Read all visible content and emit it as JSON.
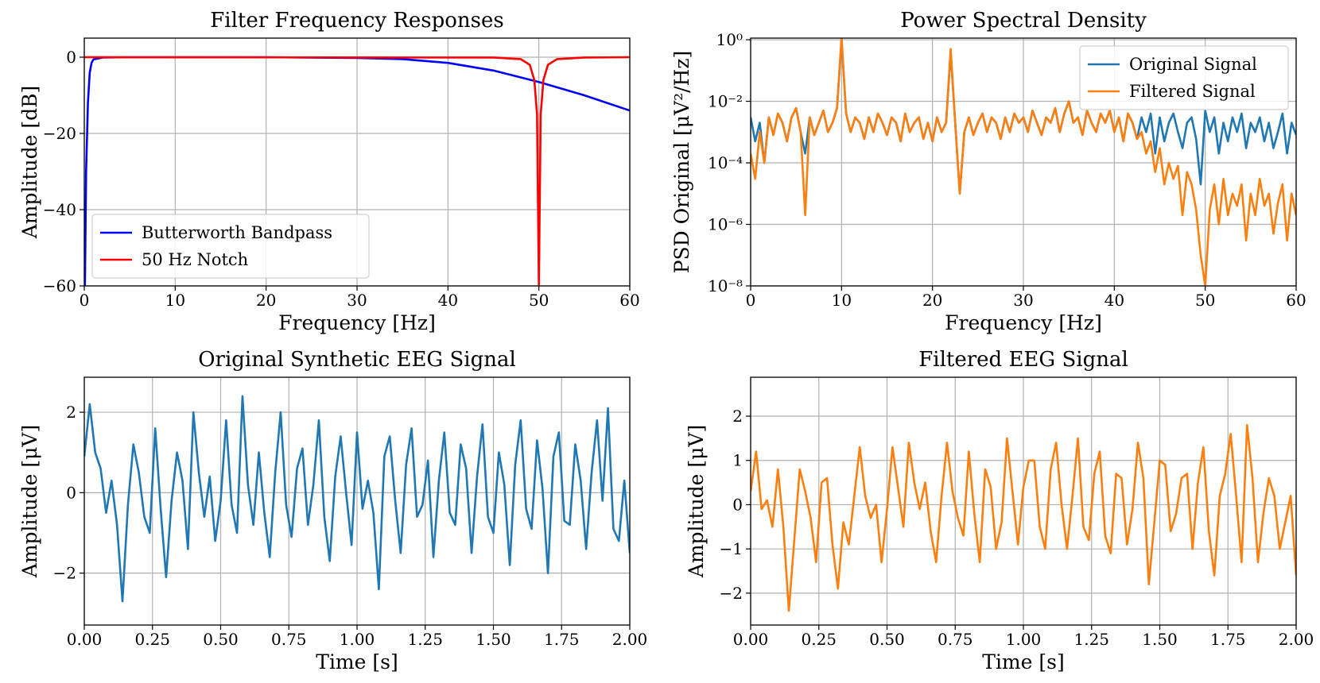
{
  "chart_data": [
    {
      "type": "line",
      "title": "Filter Frequency Responses",
      "xlabel": "Frequency [Hz]",
      "ylabel": "Amplitude [dB]",
      "xlim": [
        0,
        60
      ],
      "ylim": [
        -60,
        5
      ],
      "xticks": [
        0,
        10,
        20,
        30,
        40,
        50,
        60
      ],
      "yticks": [
        {
          "value": -60,
          "label": "−60"
        },
        {
          "value": -40,
          "label": "−40"
        },
        {
          "value": -20,
          "label": "−20"
        },
        0
      ],
      "grid": true,
      "legend": "lower left",
      "log_y": false,
      "series": [
        {
          "name": "Butterworth Bandpass",
          "color": "#0000ff",
          "x": [
            0.05,
            0.2,
            0.4,
            0.6,
            0.8,
            1,
            2,
            5,
            10,
            20,
            30,
            35,
            40,
            45,
            50,
            55,
            60
          ],
          "values": [
            -65,
            -30,
            -12,
            -4,
            -1.5,
            -0.6,
            -0.1,
            0,
            0,
            0,
            -0.2,
            -0.5,
            -1.5,
            -3.5,
            -6.5,
            -10,
            -14
          ]
        },
        {
          "name": "50 Hz Notch",
          "color": "#ff0000",
          "x": [
            0,
            45,
            48,
            49,
            49.5,
            49.8,
            50,
            50.2,
            50.5,
            51,
            52,
            55,
            60
          ],
          "values": [
            0,
            -0.1,
            -0.5,
            -2,
            -6,
            -15,
            -60,
            -15,
            -6,
            -2,
            -0.5,
            -0.1,
            0
          ]
        }
      ]
    },
    {
      "type": "line",
      "title": "Power Spectral Density",
      "xlabel": "Frequency [Hz]",
      "ylabel": "PSD Original [μV²/Hz]",
      "xlim": [
        0,
        60
      ],
      "ylim": [
        1e-08,
        1.13
      ],
      "xticks": [
        0,
        10,
        20,
        30,
        40,
        50,
        60
      ],
      "yticks": [
        {
          "value": 1e-08,
          "label": "10⁻⁸"
        },
        {
          "value": 1e-06,
          "label": "10⁻⁶"
        },
        {
          "value": 0.0001,
          "label": "10⁻⁴"
        },
        {
          "value": 0.01,
          "label": "10⁻²"
        },
        {
          "value": 1,
          "label": "10⁰"
        }
      ],
      "grid": true,
      "legend": "upper right",
      "log_y": true,
      "x": [
        0,
        0.5,
        1,
        1.5,
        2,
        2.5,
        3,
        3.5,
        4,
        4.5,
        5,
        5.5,
        6,
        6.5,
        7,
        7.5,
        8,
        8.5,
        9,
        9.5,
        10,
        10.5,
        11,
        11.5,
        12,
        12.5,
        13,
        13.5,
        14,
        14.5,
        15,
        15.5,
        16,
        16.5,
        17,
        17.5,
        18,
        18.5,
        19,
        19.5,
        20,
        20.5,
        21,
        21.5,
        22,
        22.5,
        23,
        23.5,
        24,
        24.5,
        25,
        25.5,
        26,
        26.5,
        27,
        27.5,
        28,
        28.5,
        29,
        29.5,
        30,
        30.5,
        31,
        31.5,
        32,
        32.5,
        33,
        33.5,
        34,
        34.5,
        35,
        35.5,
        36,
        36.5,
        37,
        37.5,
        38,
        38.5,
        39,
        39.5,
        40,
        40.5,
        41,
        41.5,
        42,
        42.5,
        43,
        43.5,
        44,
        44.5,
        45,
        45.5,
        46,
        46.5,
        47,
        47.5,
        48,
        48.5,
        49,
        49.5,
        50,
        50.5,
        51,
        51.5,
        52,
        52.5,
        53,
        53.5,
        54,
        54.5,
        55,
        55.5,
        56,
        56.5,
        57,
        57.5,
        58,
        58.5,
        59,
        59.5,
        60
      ],
      "series": [
        {
          "name": "Original Signal",
          "color": "#1f77b4",
          "values": [
            0.003,
            0.0005,
            0.002,
            0.0001,
            0.003,
            0.0008,
            0.004,
            0.002,
            0.0005,
            0.003,
            0.006,
            0.001,
            0.0002,
            0.003,
            0.0008,
            0.002,
            0.005,
            0.001,
            0.002,
            0.006,
            1.0,
            0.004,
            0.001,
            0.003,
            0.002,
            0.0006,
            0.003,
            0.001,
            0.004,
            0.002,
            0.0008,
            0.003,
            0.002,
            0.0005,
            0.004,
            0.001,
            0.002,
            0.003,
            0.0006,
            0.002,
            0.0005,
            0.003,
            0.001,
            0.002,
            0.4,
            0.002,
            1e-05,
            0.001,
            0.003,
            0.0008,
            0.002,
            0.004,
            0.001,
            0.003,
            0.002,
            0.0006,
            0.003,
            0.001,
            0.004,
            0.002,
            0.003,
            0.001,
            0.005,
            0.002,
            0.0008,
            0.003,
            0.002,
            0.006,
            0.001,
            0.004,
            0.01,
            0.002,
            0.003,
            0.0008,
            0.005,
            0.002,
            0.001,
            0.004,
            0.002,
            0.005,
            0.001,
            0.003,
            0.0005,
            0.004,
            0.002,
            0.0006,
            0.003,
            0.001,
            0.004,
            0.0002,
            0.003,
            0.0005,
            0.002,
            0.004,
            0.001,
            0.0003,
            0.002,
            0.003,
            0.0006,
            2e-05,
            0.005,
            0.001,
            0.003,
            0.0002,
            0.002,
            0.0005,
            0.003,
            0.001,
            0.004,
            0.0003,
            0.002,
            0.001,
            0.003,
            0.0005,
            0.002,
            0.0003,
            0.001,
            0.004,
            0.0002,
            0.002,
            0.0008
          ]
        },
        {
          "name": "Filtered Signal",
          "color": "#ff7f0e",
          "values": [
            0.0002,
            3e-05,
            0.001,
            0.0001,
            0.003,
            0.0008,
            0.004,
            0.002,
            0.0005,
            0.003,
            0.006,
            0.001,
            2e-06,
            0.003,
            0.0008,
            0.002,
            0.005,
            0.001,
            0.002,
            0.006,
            1.2,
            0.004,
            0.001,
            0.003,
            0.002,
            0.0006,
            0.003,
            0.001,
            0.004,
            0.002,
            0.0008,
            0.003,
            0.002,
            0.0005,
            0.004,
            0.001,
            0.002,
            0.003,
            0.0006,
            0.002,
            0.0005,
            0.003,
            0.001,
            0.002,
            0.5,
            0.002,
            1e-05,
            0.001,
            0.003,
            0.0008,
            0.002,
            0.004,
            0.001,
            0.003,
            0.002,
            0.0006,
            0.003,
            0.001,
            0.004,
            0.002,
            0.003,
            0.001,
            0.005,
            0.002,
            0.0008,
            0.003,
            0.002,
            0.006,
            0.001,
            0.004,
            0.01,
            0.002,
            0.003,
            0.0008,
            0.005,
            0.002,
            0.001,
            0.004,
            0.002,
            0.005,
            0.001,
            0.003,
            0.0005,
            0.004,
            0.002,
            0.0006,
            0.001,
            0.0002,
            0.0005,
            5e-05,
            0.0003,
            2e-05,
            0.0001,
            3e-05,
            8e-05,
            2e-06,
            5e-05,
            2e-05,
            3e-06,
            1e-07,
            1e-08,
            3e-06,
            2e-05,
            1e-06,
            3e-05,
            2e-06,
            1e-05,
            4e-06,
            2e-05,
            3e-07,
            1e-05,
            2e-06,
            3e-05,
            4e-06,
            1e-05,
            5e-07,
            5e-06,
            2e-05,
            3e-07,
            1e-05,
            2e-06
          ]
        }
      ]
    },
    {
      "type": "line",
      "title": "Original Synthetic EEG Signal",
      "xlabel": "Time [s]",
      "ylabel": "Amplitude [μV]",
      "xlim": [
        0,
        2
      ],
      "ylim": [
        -3.29,
        2.87
      ],
      "xticks": [
        {
          "value": 0,
          "label": "0.00"
        },
        {
          "value": 0.25,
          "label": "0.25"
        },
        {
          "value": 0.5,
          "label": "0.50"
        },
        {
          "value": 0.75,
          "label": "0.75"
        },
        {
          "value": 1,
          "label": "1.00"
        },
        {
          "value": 1.25,
          "label": "1.25"
        },
        {
          "value": 1.5,
          "label": "1.50"
        },
        {
          "value": 1.75,
          "label": "1.75"
        },
        {
          "value": 2,
          "label": "2.00"
        }
      ],
      "yticks": [
        {
          "value": -2,
          "label": "−2"
        },
        0,
        2
      ],
      "grid": true,
      "log_y": false,
      "x": [
        0,
        0.02,
        0.04,
        0.06,
        0.08,
        0.1,
        0.12,
        0.14,
        0.16,
        0.18,
        0.2,
        0.22,
        0.24,
        0.26,
        0.28,
        0.3,
        0.32,
        0.34,
        0.36,
        0.38,
        0.4,
        0.42,
        0.44,
        0.46,
        0.48,
        0.5,
        0.52,
        0.54,
        0.56,
        0.58,
        0.6,
        0.62,
        0.64,
        0.66,
        0.68,
        0.7,
        0.72,
        0.74,
        0.76,
        0.78,
        0.8,
        0.82,
        0.84,
        0.86,
        0.88,
        0.9,
        0.92,
        0.94,
        0.96,
        0.98,
        1,
        1.02,
        1.04,
        1.06,
        1.08,
        1.1,
        1.12,
        1.14,
        1.16,
        1.18,
        1.2,
        1.22,
        1.24,
        1.26,
        1.28,
        1.3,
        1.32,
        1.34,
        1.36,
        1.38,
        1.4,
        1.42,
        1.44,
        1.46,
        1.48,
        1.5,
        1.52,
        1.54,
        1.56,
        1.58,
        1.6,
        1.62,
        1.64,
        1.66,
        1.68,
        1.7,
        1.72,
        1.74,
        1.76,
        1.78,
        1.8,
        1.82,
        1.84,
        1.86,
        1.88,
        1.9,
        1.92,
        1.94,
        1.96,
        1.98,
        2
      ],
      "series": [
        {
          "name": "Original Signal",
          "color": "#1f77b4",
          "values": [
            0.9,
            2.2,
            1.0,
            0.6,
            -0.5,
            0.3,
            -0.8,
            -2.7,
            -0.3,
            1.2,
            0.5,
            -0.6,
            -1.0,
            1.6,
            -0.4,
            -2.1,
            -0.2,
            1.0,
            0.3,
            -1.4,
            2.0,
            0.5,
            -0.6,
            0.4,
            -1.2,
            -0.2,
            1.8,
            -0.3,
            -1.0,
            2.4,
            0.2,
            -0.8,
            1.0,
            -0.5,
            -1.6,
            0.5,
            2.0,
            -0.3,
            -1.1,
            0.6,
            1.1,
            -0.8,
            0.2,
            1.8,
            -0.6,
            -1.7,
            0.4,
            1.4,
            0.0,
            -1.3,
            1.5,
            -0.4,
            0.3,
            -0.5,
            -2.4,
            0.9,
            1.4,
            -0.2,
            -1.5,
            0.7,
            1.6,
            -0.6,
            -0.3,
            0.8,
            -1.6,
            0.3,
            1.5,
            -0.5,
            -0.8,
            1.2,
            0.6,
            -1.5,
            0.4,
            1.7,
            -0.6,
            -1.0,
            1.0,
            0.2,
            -1.8,
            0.7,
            1.8,
            -0.4,
            -0.9,
            1.3,
            0.1,
            -2.0,
            0.9,
            1.5,
            -0.7,
            -0.8,
            1.2,
            0.3,
            -1.4,
            0.5,
            1.8,
            -0.2,
            2.1,
            -0.9,
            -1.2,
            0.3,
            -1.5
          ]
        }
      ]
    },
    {
      "type": "line",
      "title": "Filtered EEG Signal",
      "xlabel": "Time [s]",
      "ylabel": "Amplitude [μV]",
      "xlim": [
        0,
        2
      ],
      "ylim": [
        -2.72,
        2.88
      ],
      "xticks": [
        {
          "value": 0,
          "label": "0.00"
        },
        {
          "value": 0.25,
          "label": "0.25"
        },
        {
          "value": 0.5,
          "label": "0.50"
        },
        {
          "value": 0.75,
          "label": "0.75"
        },
        {
          "value": 1,
          "label": "1.00"
        },
        {
          "value": 1.25,
          "label": "1.25"
        },
        {
          "value": 1.5,
          "label": "1.50"
        },
        {
          "value": 1.75,
          "label": "1.75"
        },
        {
          "value": 2,
          "label": "2.00"
        }
      ],
      "yticks": [
        {
          "value": -2,
          "label": "−2"
        },
        {
          "value": -1,
          "label": "−1"
        },
        0,
        1,
        2
      ],
      "grid": true,
      "log_y": false,
      "x": [
        0,
        0.02,
        0.04,
        0.06,
        0.08,
        0.1,
        0.12,
        0.14,
        0.16,
        0.18,
        0.2,
        0.22,
        0.24,
        0.26,
        0.28,
        0.3,
        0.32,
        0.34,
        0.36,
        0.38,
        0.4,
        0.42,
        0.44,
        0.46,
        0.48,
        0.5,
        0.52,
        0.54,
        0.56,
        0.58,
        0.6,
        0.62,
        0.64,
        0.66,
        0.68,
        0.7,
        0.72,
        0.74,
        0.76,
        0.78,
        0.8,
        0.82,
        0.84,
        0.86,
        0.88,
        0.9,
        0.92,
        0.94,
        0.96,
        0.98,
        1,
        1.02,
        1.04,
        1.06,
        1.08,
        1.1,
        1.12,
        1.14,
        1.16,
        1.18,
        1.2,
        1.22,
        1.24,
        1.26,
        1.28,
        1.3,
        1.32,
        1.34,
        1.36,
        1.38,
        1.4,
        1.42,
        1.44,
        1.46,
        1.48,
        1.5,
        1.52,
        1.54,
        1.56,
        1.58,
        1.6,
        1.62,
        1.64,
        1.66,
        1.68,
        1.7,
        1.72,
        1.74,
        1.76,
        1.78,
        1.8,
        1.82,
        1.84,
        1.86,
        1.88,
        1.9,
        1.92,
        1.94,
        1.96,
        1.98,
        2
      ],
      "series": [
        {
          "name": "Filtered Signal",
          "color": "#ff7f0e",
          "values": [
            0.3,
            1.2,
            -0.1,
            0.1,
            -0.5,
            0.8,
            -0.5,
            -2.4,
            -0.8,
            0.8,
            0.3,
            -0.3,
            -1.3,
            0.5,
            0.6,
            -0.9,
            -1.9,
            -0.4,
            -0.9,
            0.2,
            1.3,
            0.2,
            -0.3,
            0.0,
            -1.3,
            -0.1,
            1.3,
            0.4,
            -0.5,
            1.4,
            0.5,
            -0.1,
            0.5,
            -0.6,
            -1.3,
            0.2,
            1.4,
            0.3,
            -0.3,
            -0.7,
            1.2,
            -0.2,
            -1.3,
            0.8,
            0.4,
            -1.0,
            -0.4,
            1.5,
            0.3,
            -0.9,
            0.4,
            1.0,
            1.0,
            -0.5,
            -1.0,
            0.8,
            1.4,
            0.0,
            -1.0,
            0.2,
            1.5,
            -0.5,
            -0.8,
            0.7,
            1.2,
            -0.7,
            -1.1,
            0.7,
            0.6,
            -0.9,
            -0.1,
            1.4,
            0.6,
            -1.8,
            -0.4,
            1.0,
            0.9,
            -0.6,
            -0.2,
            0.6,
            0.7,
            -1.0,
            0.5,
            1.3,
            -0.6,
            -1.6,
            0.2,
            0.7,
            1.6,
            0.2,
            -1.3,
            1.8,
            0.6,
            -1.3,
            -0.2,
            0.6,
            0.2,
            -1.0,
            -0.4,
            0.2,
            -1.6
          ]
        }
      ]
    }
  ]
}
